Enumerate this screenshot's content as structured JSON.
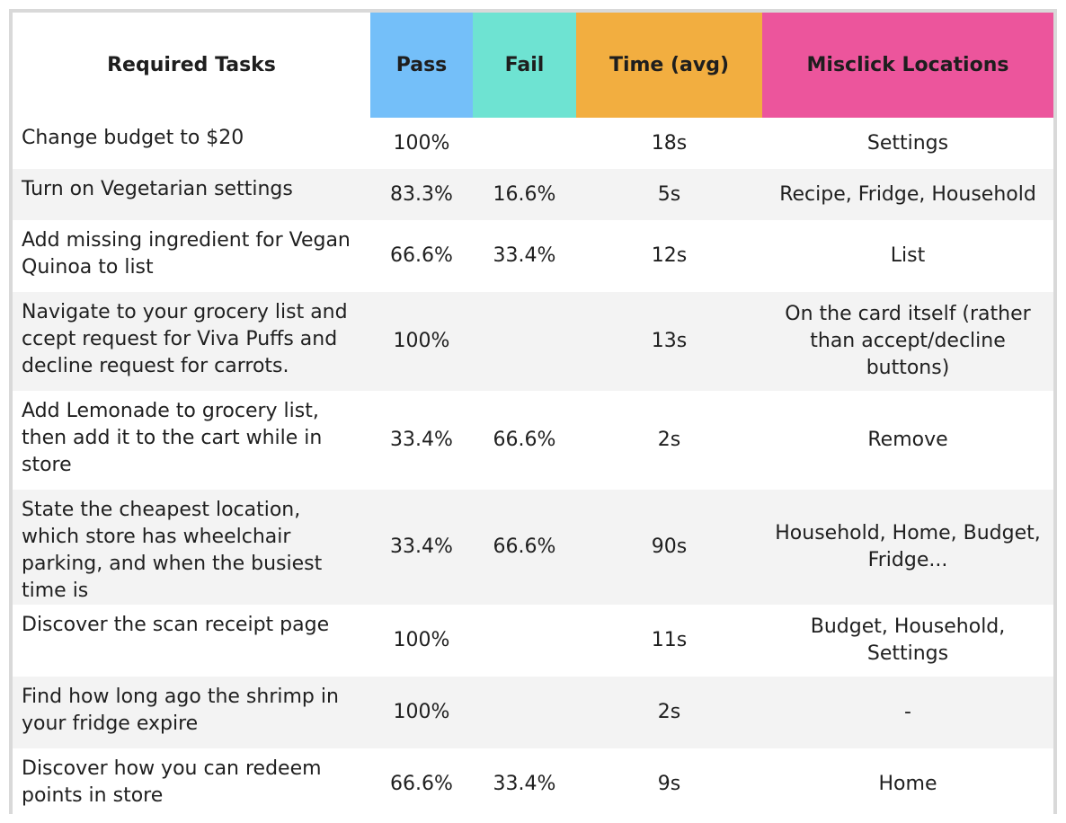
{
  "headers": {
    "task": "Required Tasks",
    "pass": "Pass",
    "fail": "Fail",
    "time": "Time (avg)",
    "misclick": "Misclick Locations"
  },
  "colors": {
    "pass_header": "#74bff9",
    "fail_header": "#6ee3d2",
    "time_header": "#f2ae40",
    "misclick_header": "#ec559c",
    "stripe": "#f3f3f3"
  },
  "rows": [
    {
      "task": "Change budget to $20",
      "pass": "100%",
      "fail": "",
      "time": "18s",
      "misclick": "Settings"
    },
    {
      "task": "Turn on Vegetarian settings",
      "pass": "83.3%",
      "fail": "16.6%",
      "time": "5s",
      "misclick": "Recipe, Fridge, Household"
    },
    {
      "task": "Add missing ingredient for Vegan Quinoa to list",
      "pass": "66.6%",
      "fail": "33.4%",
      "time": "12s",
      "misclick": "List"
    },
    {
      "task": "Navigate to your grocery list and ccept request for Viva Puffs and decline request for carrots.",
      "pass": "100%",
      "fail": "",
      "time": "13s",
      "misclick": "On the card itself (rather than accept/decline buttons)"
    },
    {
      "task": "Add Lemonade to grocery list, then add it to the cart while in store",
      "pass": "33.4%",
      "fail": "66.6%",
      "time": "2s",
      "misclick": "Remove"
    },
    {
      "task": "State the cheapest location, which store has wheelchair parking, and when the busiest time is",
      "pass": "33.4%",
      "fail": "66.6%",
      "time": "90s",
      "misclick": "Household, Home, Budget, Fridge..."
    },
    {
      "task": "Discover the scan receipt page",
      "pass": "100%",
      "fail": "",
      "time": "11s",
      "misclick": "Budget, Household, Settings"
    },
    {
      "task": "Find how long ago the shrimp in your fridge expire",
      "pass": "100%",
      "fail": "",
      "time": "2s",
      "misclick": "-"
    },
    {
      "task": "Discover how you can redeem points in store",
      "pass": "66.6%",
      "fail": "33.4%",
      "time": "9s",
      "misclick": "Home"
    }
  ]
}
